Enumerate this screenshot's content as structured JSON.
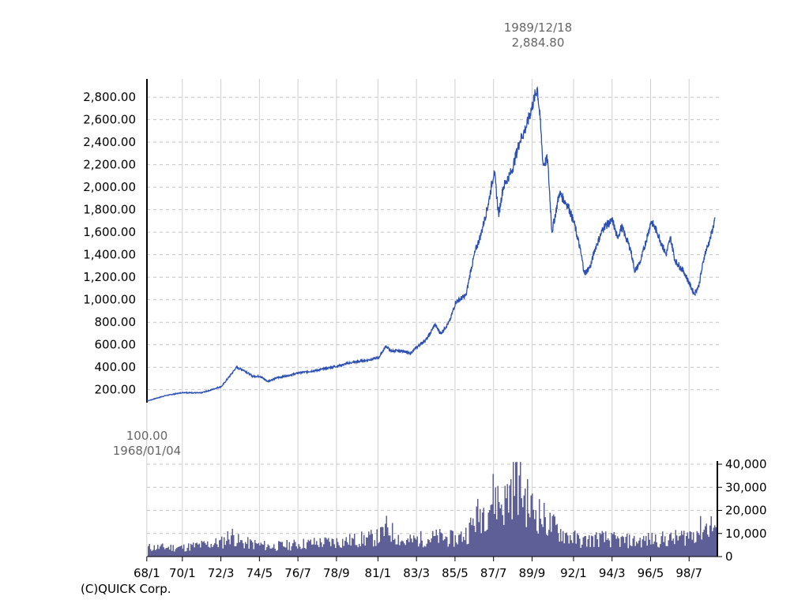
{
  "chart_data": [
    {
      "type": "line",
      "title": "",
      "xlabel": "",
      "ylabel": "",
      "ylim": [
        100,
        2884.8
      ],
      "y_ticks": [
        "200.00",
        "400.00",
        "600.00",
        "800.00",
        "1,000.00",
        "1,200.00",
        "1,400.00",
        "1,600.00",
        "1,800.00",
        "2,000.00",
        "2,200.00",
        "2,400.00",
        "2,600.00",
        "2,800.00"
      ],
      "y_tick_values": [
        200,
        400,
        600,
        800,
        1000,
        1200,
        1400,
        1600,
        1800,
        2000,
        2200,
        2400,
        2600,
        2800
      ],
      "x_ticks": [
        "68/1",
        "70/1",
        "72/3",
        "74/5",
        "76/7",
        "78/9",
        "81/1",
        "83/3",
        "85/5",
        "87/7",
        "89/9",
        "92/1",
        "94/3",
        "96/5",
        "98/7"
      ],
      "series": [
        {
          "color": "#2b4fb3",
          "points": [
            [
              "1968/01/04",
              100
            ],
            [
              "1969/01",
              148
            ],
            [
              "1970/01",
              176
            ],
            [
              "1971/01",
              172
            ],
            [
              "1971/07",
              195
            ],
            [
              "1972/03",
              230
            ],
            [
              "1972/09",
              330
            ],
            [
              "1973/01",
              400
            ],
            [
              "1973/06",
              375
            ],
            [
              "1973/12",
              320
            ],
            [
              "1974/05",
              320
            ],
            [
              "1974/10",
              275
            ],
            [
              "1975/04",
              305
            ],
            [
              "1976/01",
              330
            ],
            [
              "1976/07",
              350
            ],
            [
              "1977/06",
              370
            ],
            [
              "1978/09",
              410
            ],
            [
              "1979/06",
              440
            ],
            [
              "1980/06",
              465
            ],
            [
              "1981/01",
              485
            ],
            [
              "1981/06",
              590
            ],
            [
              "1981/09",
              545
            ],
            [
              "1982/06",
              545
            ],
            [
              "1982/10",
              520
            ],
            [
              "1983/03",
              580
            ],
            [
              "1983/10",
              660
            ],
            [
              "1984/03",
              780
            ],
            [
              "1984/07",
              700
            ],
            [
              "1985/01",
              810
            ],
            [
              "1985/05",
              980
            ],
            [
              "1985/12",
              1040
            ],
            [
              "1986/03",
              1250
            ],
            [
              "1986/06",
              1420
            ],
            [
              "1986/10",
              1580
            ],
            [
              "1987/03",
              1850
            ],
            [
              "1987/07",
              2150
            ],
            [
              "1987/10",
              1750
            ],
            [
              "1988/01",
              2000
            ],
            [
              "1988/07",
              2150
            ],
            [
              "1988/12",
              2400
            ],
            [
              "1989/05",
              2550
            ],
            [
              "1989/12/18",
              2884.8
            ],
            [
              "1990/02",
              2600
            ],
            [
              "1990/04",
              2200
            ],
            [
              "1990/07",
              2250
            ],
            [
              "1990/10",
              1600
            ],
            [
              "1991/03",
              1950
            ],
            [
              "1991/09",
              1830
            ],
            [
              "1992/01",
              1680
            ],
            [
              "1992/05",
              1450
            ],
            [
              "1992/08",
              1230
            ],
            [
              "1992/12",
              1300
            ],
            [
              "1993/03",
              1450
            ],
            [
              "1993/09",
              1650
            ],
            [
              "1994/03",
              1700
            ],
            [
              "1994/06",
              1550
            ],
            [
              "1994/09",
              1650
            ],
            [
              "1995/03",
              1450
            ],
            [
              "1995/06",
              1250
            ],
            [
              "1995/10",
              1350
            ],
            [
              "1996/05",
              1700
            ],
            [
              "1996/09",
              1600
            ],
            [
              "1997/03",
              1400
            ],
            [
              "1997/06",
              1550
            ],
            [
              "1997/09",
              1350
            ],
            [
              "1998/03",
              1250
            ],
            [
              "1998/10",
              1050
            ],
            [
              "1999/01",
              1120
            ],
            [
              "1999/05",
              1400
            ],
            [
              "1999/09",
              1550
            ],
            [
              "1999/12",
              1720
            ]
          ]
        }
      ],
      "annotations": [
        {
          "date": "1989/12/18",
          "value": "2,884.80"
        },
        {
          "date": "1968/01/04",
          "value": "100.00"
        }
      ],
      "grid": true
    },
    {
      "type": "bar",
      "title": "",
      "xlabel": "",
      "ylabel": "",
      "ylim": [
        0,
        40000
      ],
      "y_ticks": [
        "0",
        "10,000",
        "20,000",
        "30,000",
        "40,000"
      ],
      "y_tick_values": [
        0,
        10000,
        20000,
        30000,
        40000
      ],
      "color": "#5d5f96",
      "monthly_volume_anchors": [
        [
          "1968/01",
          4500
        ],
        [
          "1970/01",
          4500
        ],
        [
          "1972/03",
          7000
        ],
        [
          "1972/09",
          11000
        ],
        [
          "1973/03",
          7000
        ],
        [
          "1975/01",
          5000
        ],
        [
          "1977/01",
          6500
        ],
        [
          "1979/01",
          7500
        ],
        [
          "1981/01",
          9500
        ],
        [
          "1981/06",
          14000
        ],
        [
          "1982/06",
          7000
        ],
        [
          "1983/03",
          8500
        ],
        [
          "1984/06",
          9500
        ],
        [
          "1985/05",
          8500
        ],
        [
          "1986/01",
          12000
        ],
        [
          "1986/06",
          19000
        ],
        [
          "1987/01",
          24000
        ],
        [
          "1987/07",
          30000
        ],
        [
          "1988/01",
          25000
        ],
        [
          "1988/06",
          34000
        ],
        [
          "1988/09",
          40000
        ],
        [
          "1989/06",
          25000
        ],
        [
          "1990/01",
          21000
        ],
        [
          "1990/06",
          17000
        ],
        [
          "1991/06",
          11000
        ],
        [
          "1992/06",
          7500
        ],
        [
          "1993/06",
          9000
        ],
        [
          "1994/06",
          8000
        ],
        [
          "1995/06",
          7500
        ],
        [
          "1996/06",
          8500
        ],
        [
          "1997/06",
          8500
        ],
        [
          "1998/06",
          10500
        ],
        [
          "1999/03",
          14000
        ],
        [
          "1999/09",
          15500
        ],
        [
          "1999/12",
          14500
        ]
      ]
    }
  ],
  "credit": "(C)QUICK Corp."
}
